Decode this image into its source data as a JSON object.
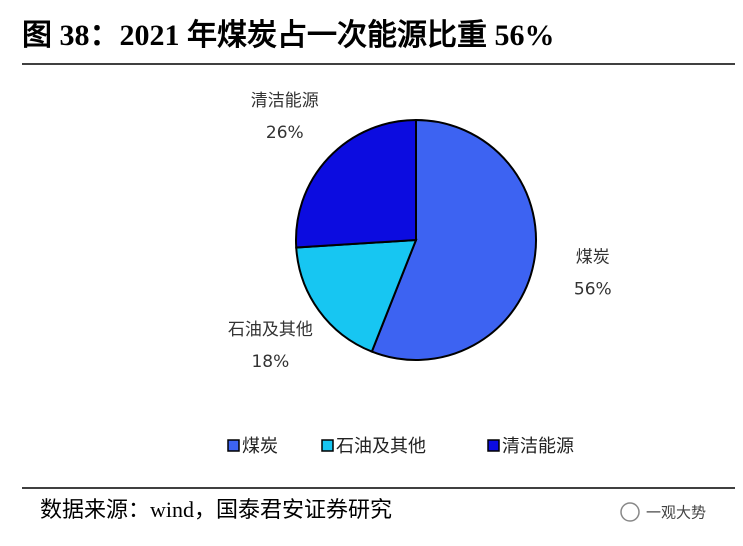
{
  "chart_data": {
    "type": "pie",
    "title": "图 38：2021 年煤炭占一次能源比重 56%",
    "categories": [
      "煤炭",
      "石油及其他",
      "清洁能源"
    ],
    "values": [
      56,
      18,
      26
    ],
    "value_labels": [
      "56%",
      "18%",
      "26%"
    ],
    "colors": [
      "#3d63f2",
      "#17c6f2",
      "#0c0ce0"
    ],
    "source": "数据来源：wind，国泰君安证券研究",
    "watermark": "一观大势"
  }
}
